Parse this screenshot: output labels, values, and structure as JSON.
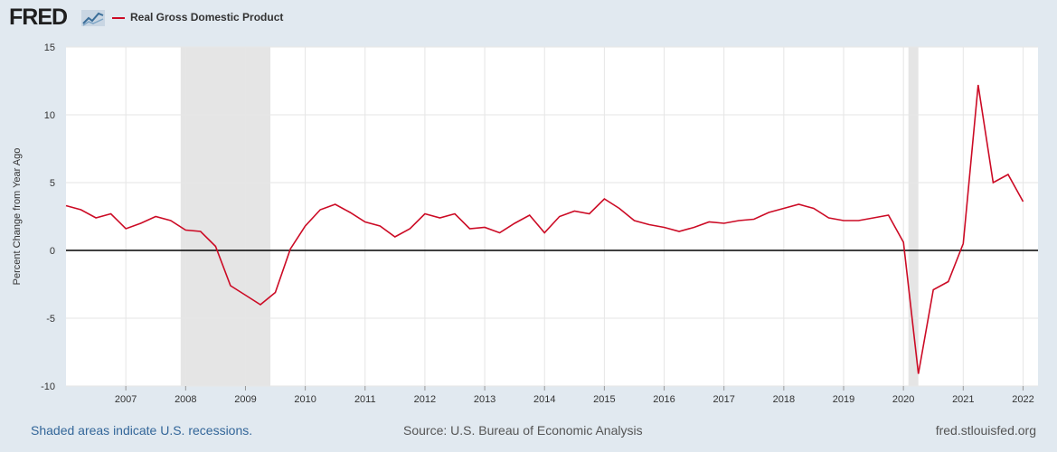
{
  "header": {
    "logo_text": "FRED",
    "legend_label": "Real Gross Domestic Product",
    "series_color": "#cc0b25"
  },
  "footer": {
    "recession_note": "Shaded areas indicate U.S. recessions.",
    "source": "Source: U.S. Bureau of Economic Analysis",
    "site": "fred.stlouisfed.org"
  },
  "chart_data": {
    "type": "line",
    "title": "",
    "xlabel": "",
    "ylabel": "Percent Change from Year Ago",
    "xlim": [
      2006.0,
      2022.25
    ],
    "ylim": [
      -10,
      15
    ],
    "y_ticks": [
      15,
      10,
      5,
      0,
      -5,
      -10
    ],
    "x_ticks": [
      2007,
      2008,
      2009,
      2010,
      2011,
      2012,
      2013,
      2014,
      2015,
      2016,
      2017,
      2018,
      2019,
      2020,
      2021,
      2022
    ],
    "grid": true,
    "zero_line": true,
    "recessions": [
      [
        2007.917,
        2009.417
      ],
      [
        2020.083,
        2020.25
      ]
    ],
    "series": [
      {
        "name": "Real Gross Domestic Product",
        "color": "#cc0b25",
        "x": [
          2006.0,
          2006.25,
          2006.5,
          2006.75,
          2007.0,
          2007.25,
          2007.5,
          2007.75,
          2008.0,
          2008.25,
          2008.5,
          2008.75,
          2009.0,
          2009.25,
          2009.5,
          2009.75,
          2010.0,
          2010.25,
          2010.5,
          2010.75,
          2011.0,
          2011.25,
          2011.5,
          2011.75,
          2012.0,
          2012.25,
          2012.5,
          2012.75,
          2013.0,
          2013.25,
          2013.5,
          2013.75,
          2014.0,
          2014.25,
          2014.5,
          2014.75,
          2015.0,
          2015.25,
          2015.5,
          2015.75,
          2016.0,
          2016.25,
          2016.5,
          2016.75,
          2017.0,
          2017.25,
          2017.5,
          2017.75,
          2018.0,
          2018.25,
          2018.5,
          2018.75,
          2019.0,
          2019.25,
          2019.5,
          2019.75,
          2020.0,
          2020.25,
          2020.5,
          2020.75,
          2021.0,
          2021.25,
          2021.5,
          2021.75,
          2022.0
        ],
        "values": [
          3.3,
          3.0,
          2.4,
          2.7,
          1.6,
          2.0,
          2.5,
          2.2,
          1.5,
          1.4,
          0.3,
          -2.6,
          -3.3,
          -4.0,
          -3.1,
          0.1,
          1.8,
          3.0,
          3.4,
          2.8,
          2.1,
          1.8,
          1.0,
          1.6,
          2.7,
          2.4,
          2.7,
          1.6,
          1.7,
          1.3,
          2.0,
          2.6,
          1.3,
          2.5,
          2.9,
          2.7,
          3.8,
          3.1,
          2.2,
          1.9,
          1.7,
          1.4,
          1.7,
          2.1,
          2.0,
          2.2,
          2.3,
          2.8,
          3.1,
          3.4,
          3.1,
          2.4,
          2.2,
          2.2,
          2.4,
          2.6,
          0.6,
          -9.1,
          -2.9,
          -2.3,
          0.5,
          12.2,
          5.0,
          5.6,
          3.6
        ]
      }
    ]
  }
}
